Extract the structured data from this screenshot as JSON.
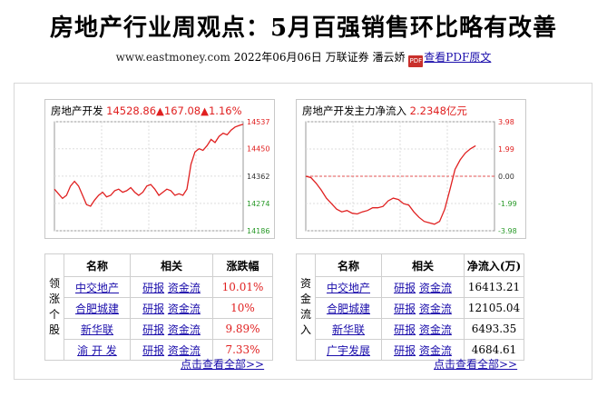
{
  "header": {
    "title": "房地产行业周观点：5月百强销售环比略有改善",
    "site": "www.eastmoney.com",
    "date": "2022年06月06日",
    "broker": "万联证券",
    "author": "潘云娇",
    "pdf_label": "查看PDF原文",
    "pdf_icon_text": "PDF"
  },
  "charts": [
    {
      "name": "房地产开发",
      "value": "14528.86",
      "change": "▲167.08",
      "change_pct": "▲1.16%",
      "y_ticks": [
        "14537",
        "14450",
        "14362",
        "14274",
        "14186"
      ],
      "ylim": [
        14186,
        14537
      ]
    },
    {
      "name": "房地产开发主力净流入",
      "value": "2.2348亿元",
      "y_ticks": [
        "3.98",
        "1.99",
        "0.00",
        "-1.99",
        "-3.98"
      ],
      "ylim": [
        -3.98,
        3.98
      ]
    }
  ],
  "chart_data": [
    {
      "type": "line",
      "title": "房地产开发",
      "ylim": [
        14186,
        14537
      ],
      "y_ticks": [
        14537,
        14450,
        14362,
        14274,
        14186
      ],
      "values": [
        14320,
        14305,
        14290,
        14300,
        14330,
        14345,
        14330,
        14300,
        14270,
        14265,
        14285,
        14300,
        14310,
        14295,
        14300,
        14315,
        14320,
        14310,
        14315,
        14325,
        14310,
        14300,
        14310,
        14330,
        14335,
        14320,
        14300,
        14310,
        14320,
        14315,
        14300,
        14305,
        14300,
        14320,
        14400,
        14440,
        14450,
        14445,
        14460,
        14480,
        14470,
        14490,
        14500,
        14495,
        14510,
        14520,
        14525,
        14529
      ]
    },
    {
      "type": "line",
      "title": "房地产开发主力净流入",
      "ylim": [
        -3.98,
        3.98
      ],
      "y_ticks": [
        3.98,
        1.99,
        0.0,
        -1.99,
        -3.98
      ],
      "values": [
        0.0,
        -0.1,
        -0.5,
        -1.0,
        -1.6,
        -2.0,
        -2.4,
        -2.6,
        -2.5,
        -2.7,
        -2.75,
        -2.6,
        -2.5,
        -2.3,
        -2.3,
        -2.2,
        -1.8,
        -1.6,
        -1.7,
        -2.0,
        -2.1,
        -2.6,
        -3.0,
        -3.3,
        -3.4,
        -3.5,
        -3.3,
        -2.4,
        -1.0,
        0.5,
        1.2,
        1.7,
        2.0,
        2.23
      ]
    }
  ],
  "table_left": {
    "side_label": [
      "领",
      "涨",
      "个",
      "股"
    ],
    "headers": [
      "名称",
      "相关",
      "涨跌幅"
    ],
    "rows": [
      {
        "name": "中交地产",
        "link1": "研报",
        "link2": "资金流",
        "value": "10.01%"
      },
      {
        "name": "合肥城建",
        "link1": "研报",
        "link2": "资金流",
        "value": "10%"
      },
      {
        "name": "新华联",
        "link1": "研报",
        "link2": "资金流",
        "value": "9.89%"
      },
      {
        "name": "渝 开 发",
        "link1": "研报",
        "link2": "资金流",
        "value": "7.33%"
      }
    ],
    "more": "点击查看全部>>"
  },
  "table_right": {
    "side_label": [
      "资",
      "金",
      "流",
      "入"
    ],
    "headers": [
      "名称",
      "相关",
      "净流入(万)"
    ],
    "rows": [
      {
        "name": "中交地产",
        "link1": "研报",
        "link2": "资金流",
        "value": "16413.21"
      },
      {
        "name": "合肥城建",
        "link1": "研报",
        "link2": "资金流",
        "value": "12105.04"
      },
      {
        "name": "新华联",
        "link1": "研报",
        "link2": "资金流",
        "value": "6493.35"
      },
      {
        "name": "广宇发展",
        "link1": "研报",
        "link2": "资金流",
        "value": "4684.61"
      }
    ],
    "more": "点击查看全部>>"
  },
  "colors": {
    "price_line": "#e02020",
    "tick_red": "#e02020",
    "tick_green": "#2a9a2a",
    "link": "#1a0dab"
  }
}
